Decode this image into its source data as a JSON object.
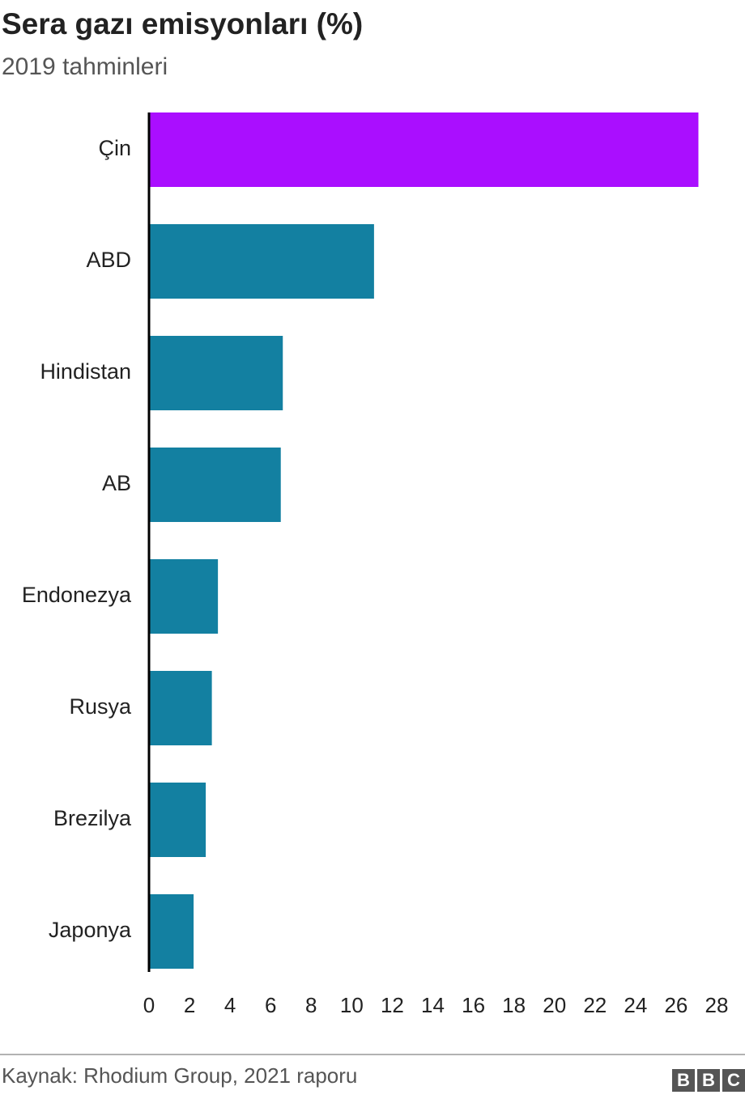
{
  "chart_data": {
    "type": "bar",
    "orientation": "horizontal",
    "title": "Sera gazı emisyonları (%)",
    "subtitle": "2019 tahminleri",
    "categories": [
      "Çin",
      "ABD",
      "Hindistan",
      "AB",
      "Endonezya",
      "Rusya",
      "Brezilya",
      "Japonya"
    ],
    "values": [
      27.1,
      11.1,
      6.6,
      6.5,
      3.4,
      3.1,
      2.8,
      2.2
    ],
    "colors": [
      "#aa0eff",
      "#1380a1",
      "#1380a1",
      "#1380a1",
      "#1380a1",
      "#1380a1",
      "#1380a1",
      "#1380a1"
    ],
    "xlim": [
      0,
      28
    ],
    "xticks": [
      0,
      2,
      4,
      6,
      8,
      10,
      12,
      14,
      16,
      18,
      20,
      22,
      24,
      26,
      28
    ],
    "grid": false,
    "source": "Kaynak: Rhodium Group, 2021 raporu",
    "logo": [
      "B",
      "B",
      "C"
    ]
  }
}
